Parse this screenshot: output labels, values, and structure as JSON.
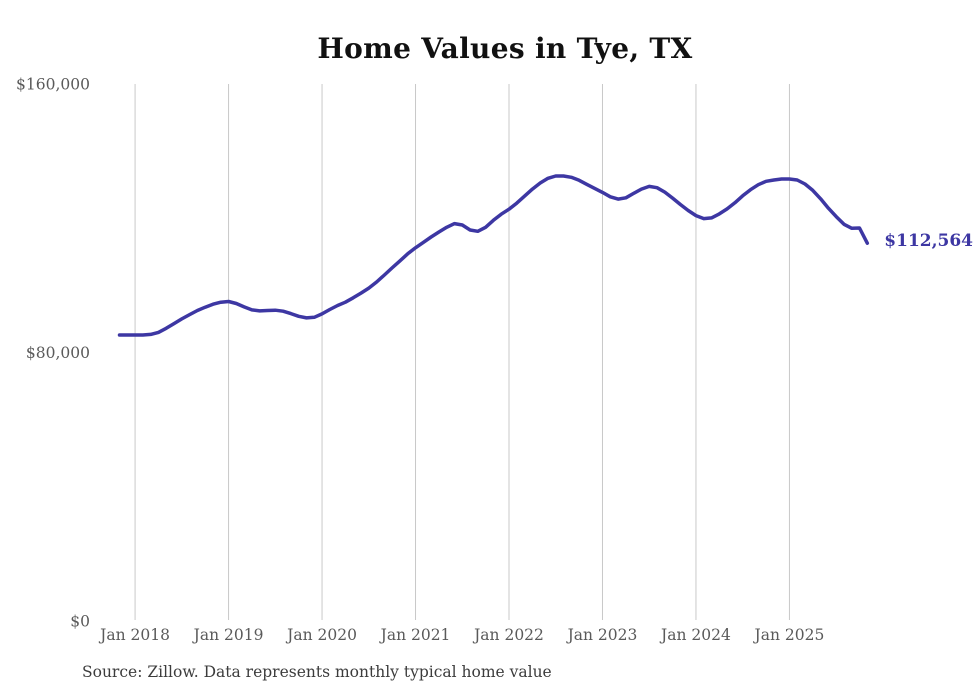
{
  "page": {
    "title": "Home Values in Tye, TX",
    "source_note": "Source: Zillow. Data represents monthly typical home value"
  },
  "chart_data": {
    "type": "line",
    "title": "Home Values in Tye, TX",
    "ylabel": "",
    "xlabel": "",
    "ylim": [
      0,
      160000
    ],
    "grid": "vertical-only",
    "legend": "none",
    "line_color": "#3d37a3",
    "end_label_color": "#3d37a3",
    "axis_text_color": "#5a5a5a",
    "grid_color": "#c8c8c8",
    "end_label": "$112,564",
    "final_value": 112564,
    "y_ticks": [
      {
        "value": 0,
        "label": "$0"
      },
      {
        "value": 80000,
        "label": "$80,000"
      },
      {
        "value": 160000,
        "label": "$160,000"
      }
    ],
    "x_ticks": [
      {
        "month": "2018-01",
        "label": "Jan 2018"
      },
      {
        "month": "2019-01",
        "label": "Jan 2019"
      },
      {
        "month": "2020-01",
        "label": "Jan 2020"
      },
      {
        "month": "2021-01",
        "label": "Jan 2021"
      },
      {
        "month": "2022-01",
        "label": "Jan 2022"
      },
      {
        "month": "2023-01",
        "label": "Jan 2023"
      },
      {
        "month": "2024-01",
        "label": "Jan 2024"
      },
      {
        "month": "2025-01",
        "label": "Jan 2025"
      }
    ],
    "x": [
      "2017-11",
      "2017-12",
      "2018-01",
      "2018-02",
      "2018-03",
      "2018-04",
      "2018-05",
      "2018-06",
      "2018-07",
      "2018-08",
      "2018-09",
      "2018-10",
      "2018-11",
      "2018-12",
      "2019-01",
      "2019-02",
      "2019-03",
      "2019-04",
      "2019-05",
      "2019-06",
      "2019-07",
      "2019-08",
      "2019-09",
      "2019-10",
      "2019-11",
      "2019-12",
      "2020-01",
      "2020-02",
      "2020-03",
      "2020-04",
      "2020-05",
      "2020-06",
      "2020-07",
      "2020-08",
      "2020-09",
      "2020-10",
      "2020-11",
      "2020-12",
      "2021-01",
      "2021-02",
      "2021-03",
      "2021-04",
      "2021-05",
      "2021-06",
      "2021-07",
      "2021-08",
      "2021-09",
      "2021-10",
      "2021-11",
      "2021-12",
      "2022-01",
      "2022-02",
      "2022-03",
      "2022-04",
      "2022-05",
      "2022-06",
      "2022-07",
      "2022-08",
      "2022-09",
      "2022-10",
      "2022-11",
      "2022-12",
      "2023-01",
      "2023-02",
      "2023-03",
      "2023-04",
      "2023-05",
      "2023-06",
      "2023-07",
      "2023-08",
      "2023-09",
      "2023-10",
      "2023-11",
      "2023-12",
      "2024-01",
      "2024-02",
      "2024-03",
      "2024-04",
      "2024-05",
      "2024-06",
      "2024-07",
      "2024-08",
      "2024-09",
      "2024-10",
      "2024-11",
      "2024-12",
      "2025-01",
      "2025-02",
      "2025-03",
      "2025-04",
      "2025-05",
      "2025-06",
      "2025-07",
      "2025-08",
      "2025-09",
      "2025-10",
      "2025-11"
    ],
    "series": [
      {
        "name": "Typical home value",
        "values": [
          85200,
          85200,
          85200,
          85200,
          85400,
          86000,
          87200,
          88600,
          90000,
          91300,
          92500,
          93500,
          94400,
          95000,
          95200,
          94600,
          93600,
          92700,
          92400,
          92500,
          92600,
          92300,
          91600,
          90800,
          90300,
          90500,
          91500,
          92800,
          94000,
          95000,
          96300,
          97700,
          99200,
          101000,
          103100,
          105200,
          107300,
          109400,
          111200,
          112800,
          114400,
          115900,
          117300,
          118400,
          118000,
          116500,
          116100,
          117300,
          119400,
          121200,
          122700,
          124500,
          126600,
          128700,
          130500,
          131900,
          132600,
          132600,
          132200,
          131300,
          130100,
          128900,
          127700,
          126400,
          125700,
          126100,
          127400,
          128700,
          129500,
          129100,
          127800,
          126000,
          124100,
          122300,
          120800,
          119900,
          120100,
          121300,
          122800,
          124600,
          126700,
          128500,
          130000,
          131000,
          131400,
          131700,
          131700,
          131400,
          130200,
          128300,
          125800,
          123000,
          120500,
          118200,
          117000,
          117100,
          112564
        ]
      }
    ]
  }
}
